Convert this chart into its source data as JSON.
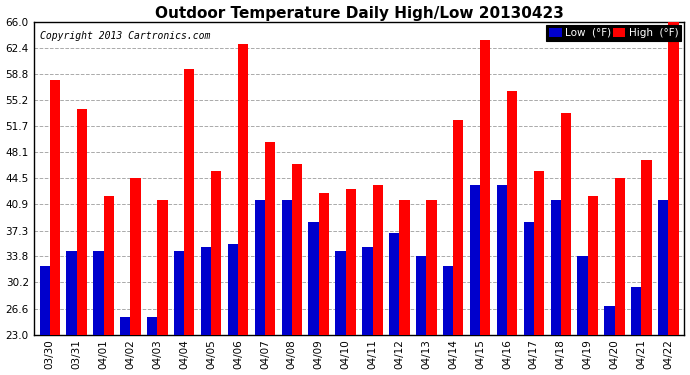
{
  "title": "Outdoor Temperature Daily High/Low 20130423",
  "copyright": "Copyright 2013 Cartronics.com",
  "categories": [
    "03/30",
    "03/31",
    "04/01",
    "04/02",
    "04/03",
    "04/04",
    "04/05",
    "04/06",
    "04/07",
    "04/08",
    "04/09",
    "04/10",
    "04/11",
    "04/12",
    "04/13",
    "04/14",
    "04/15",
    "04/16",
    "04/17",
    "04/18",
    "04/19",
    "04/20",
    "04/21",
    "04/22"
  ],
  "high": [
    58.0,
    54.0,
    42.0,
    44.5,
    41.5,
    59.5,
    45.5,
    63.0,
    49.5,
    46.5,
    42.5,
    43.0,
    43.5,
    41.5,
    41.5,
    52.5,
    63.5,
    56.5,
    45.5,
    53.5,
    42.0,
    44.5,
    47.0,
    66.0
  ],
  "low": [
    32.5,
    34.5,
    34.5,
    25.5,
    25.5,
    34.5,
    35.0,
    35.5,
    41.5,
    41.5,
    38.5,
    34.5,
    35.0,
    37.0,
    33.8,
    32.5,
    43.5,
    43.5,
    38.5,
    41.5,
    33.8,
    27.0,
    29.5,
    41.5
  ],
  "high_color": "#ff0000",
  "low_color": "#0000cc",
  "ylim_min": 23.0,
  "ylim_max": 66.0,
  "yticks": [
    23.0,
    26.6,
    30.2,
    33.8,
    37.3,
    40.9,
    44.5,
    48.1,
    51.7,
    55.2,
    58.8,
    62.4,
    66.0
  ],
  "legend_low_label": "Low  (°F)",
  "legend_high_label": "High  (°F)",
  "bg_color": "#ffffff",
  "grid_color": "#aaaaaa",
  "title_fontsize": 11,
  "axis_fontsize": 7.5,
  "bar_width": 0.38
}
